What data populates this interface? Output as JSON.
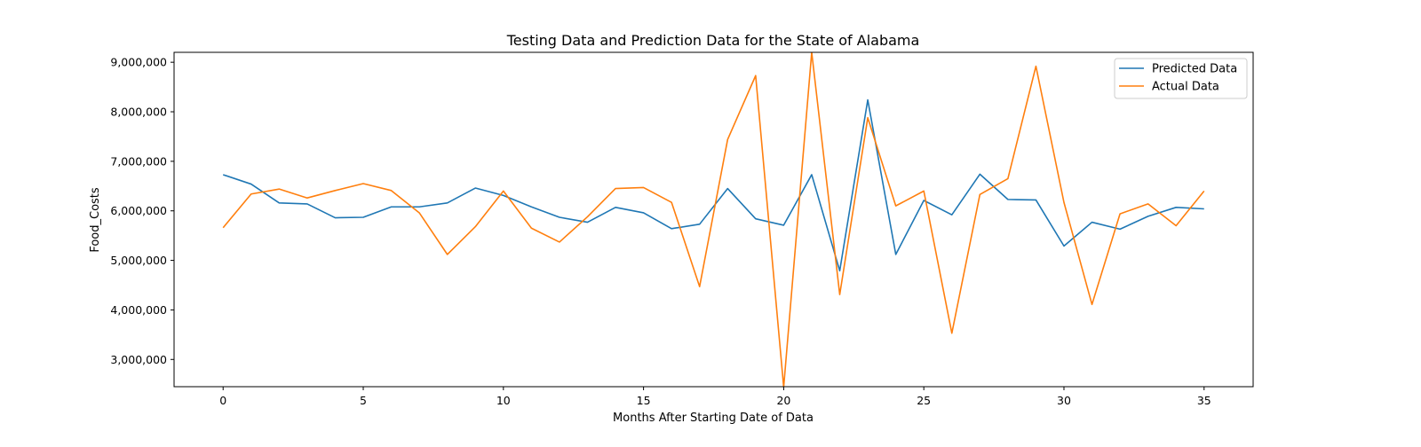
{
  "chart_data": {
    "type": "line",
    "title": "Testing Data and Prediction Data for the State of Alabama",
    "xlabel": "Months After Starting Date of Data",
    "ylabel": "Food_Costs",
    "xlim": [
      -1.75,
      36.75
    ],
    "ylim": [
      2450000,
      9200000
    ],
    "x_ticks": [
      0,
      5,
      10,
      15,
      20,
      25,
      30,
      35
    ],
    "x_tick_labels": [
      "0",
      "5",
      "10",
      "15",
      "20",
      "25",
      "30",
      "35"
    ],
    "y_ticks": [
      3000000,
      4000000,
      5000000,
      6000000,
      7000000,
      8000000,
      9000000
    ],
    "y_tick_labels": [
      "3,000,000",
      "4,000,000",
      "5,000,000",
      "6,000,000",
      "7,000,000",
      "8,000,000",
      "9,000,000"
    ],
    "grid": false,
    "legend_position": "top-right",
    "x": [
      0,
      1,
      2,
      3,
      4,
      5,
      6,
      7,
      8,
      9,
      10,
      11,
      12,
      13,
      14,
      15,
      16,
      17,
      18,
      19,
      20,
      21,
      22,
      23,
      24,
      25,
      26,
      27,
      28,
      29,
      30,
      31,
      32,
      33,
      34,
      35
    ],
    "series": [
      {
        "name": "Predicted Data",
        "color": "#1f77b4",
        "values": [
          6730000,
          6540000,
          6160000,
          6140000,
          5860000,
          5870000,
          6080000,
          6080000,
          6160000,
          6460000,
          6310000,
          6080000,
          5870000,
          5770000,
          6070000,
          5960000,
          5640000,
          5730000,
          6450000,
          5840000,
          5710000,
          6730000,
          4790000,
          8240000,
          5120000,
          6210000,
          5920000,
          6740000,
          6230000,
          6220000,
          5290000,
          5770000,
          5630000,
          5890000,
          6070000,
          6040000
        ]
      },
      {
        "name": "Actual Data",
        "color": "#ff7f0e",
        "values": [
          5660000,
          6340000,
          6440000,
          6260000,
          6410000,
          6550000,
          6410000,
          5960000,
          5120000,
          5680000,
          6400000,
          5650000,
          5370000,
          5880000,
          6450000,
          6470000,
          6170000,
          4470000,
          7440000,
          8730000,
          2440000,
          9200000,
          4310000,
          7880000,
          6100000,
          6400000,
          3530000,
          6330000,
          6650000,
          8920000,
          6170000,
          4110000,
          5940000,
          6140000,
          5700000,
          6400000
        ]
      }
    ]
  }
}
